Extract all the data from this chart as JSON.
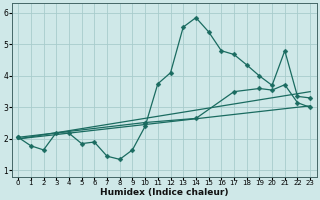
{
  "xlabel": "Humidex (Indice chaleur)",
  "bg_color": "#cfe8e8",
  "grid_color": "#a8cccc",
  "line_color": "#1a6b60",
  "xlim": [
    -0.5,
    23.5
  ],
  "ylim": [
    0.8,
    6.3
  ],
  "xticks": [
    0,
    1,
    2,
    3,
    4,
    5,
    6,
    7,
    8,
    9,
    10,
    11,
    12,
    13,
    14,
    15,
    16,
    17,
    18,
    19,
    20,
    21,
    22,
    23
  ],
  "yticks": [
    1,
    2,
    3,
    4,
    5,
    6
  ],
  "line1_x": [
    0,
    1,
    2,
    3,
    4,
    5,
    6,
    7,
    8,
    9,
    10,
    11,
    12,
    13,
    14,
    15,
    16,
    17,
    18,
    19,
    20,
    21,
    22,
    23
  ],
  "line1_y": [
    2.05,
    1.78,
    1.65,
    2.2,
    2.18,
    1.85,
    1.9,
    1.45,
    1.35,
    1.65,
    2.4,
    3.75,
    4.1,
    5.55,
    5.85,
    5.4,
    4.8,
    4.68,
    4.35,
    4.0,
    3.7,
    4.8,
    3.35,
    3.3
  ],
  "line2_x": [
    0,
    23
  ],
  "line2_y": [
    2.0,
    3.05
  ],
  "line3_x": [
    0,
    10,
    14,
    17,
    19,
    20,
    21,
    22,
    23
  ],
  "line3_y": [
    2.05,
    2.52,
    2.65,
    3.5,
    3.6,
    3.55,
    3.72,
    3.15,
    3.0
  ],
  "line4_x": [
    0,
    23
  ],
  "line4_y": [
    2.0,
    3.5
  ]
}
